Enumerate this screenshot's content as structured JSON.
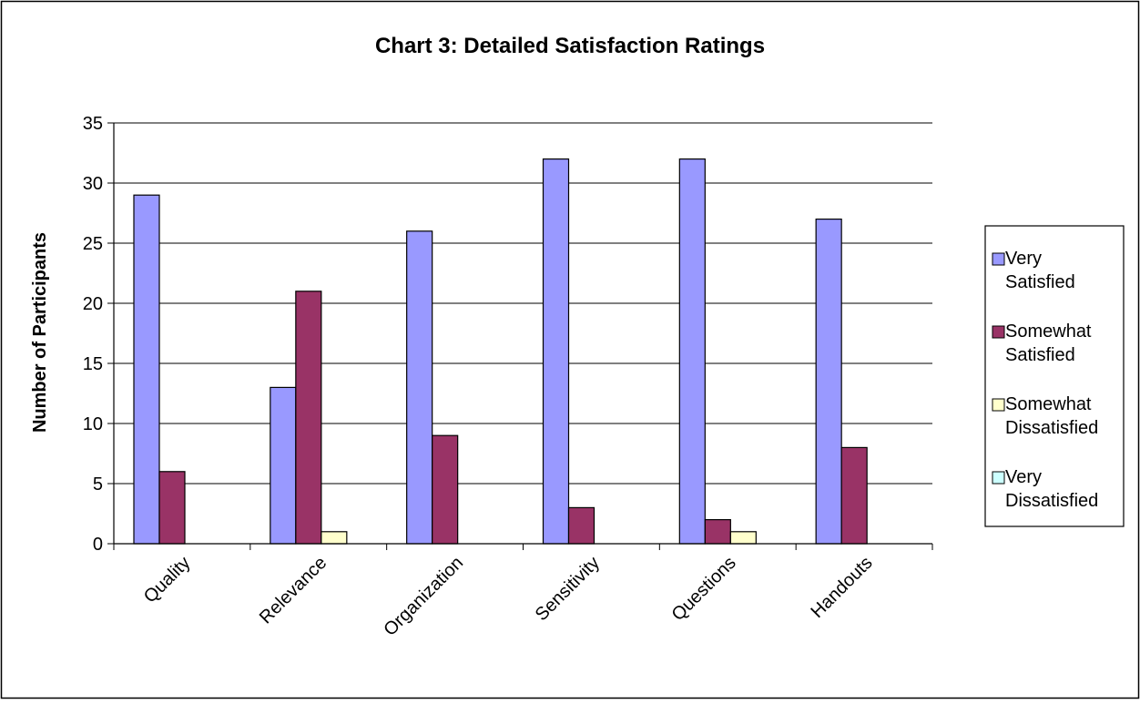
{
  "chart_data": {
    "type": "bar",
    "title": "Chart 3: Detailed Satisfaction Ratings",
    "xlabel": "",
    "ylabel": "Number of Participants",
    "ylim": [
      0,
      35
    ],
    "yticks": [
      0,
      5,
      10,
      15,
      20,
      25,
      30,
      35
    ],
    "grid": true,
    "legend_position": "right",
    "categories": [
      "Quality",
      "Relevance",
      "Organization",
      "Sensitivity",
      "Questions",
      "Handouts"
    ],
    "series": [
      {
        "name": "Very Satisfied",
        "legend_lines": [
          "Very",
          "Satisfied"
        ],
        "color": "#9999ff",
        "values": [
          29,
          13,
          26,
          32,
          32,
          27
        ]
      },
      {
        "name": "Somewhat Satisfied",
        "legend_lines": [
          "Somewhat",
          "Satisfied"
        ],
        "color": "#993366",
        "values": [
          6,
          21,
          9,
          3,
          2,
          8
        ]
      },
      {
        "name": "Somewhat Dissatisfied",
        "legend_lines": [
          "Somewhat",
          "Dissatisfied"
        ],
        "color": "#ffffcc",
        "values": [
          0,
          1,
          0,
          0,
          1,
          0
        ]
      },
      {
        "name": "Very Dissatisfied",
        "legend_lines": [
          "Very",
          "Dissatisfied"
        ],
        "color": "#ccffff",
        "values": [
          0,
          0,
          0,
          0,
          0,
          0
        ]
      }
    ]
  }
}
